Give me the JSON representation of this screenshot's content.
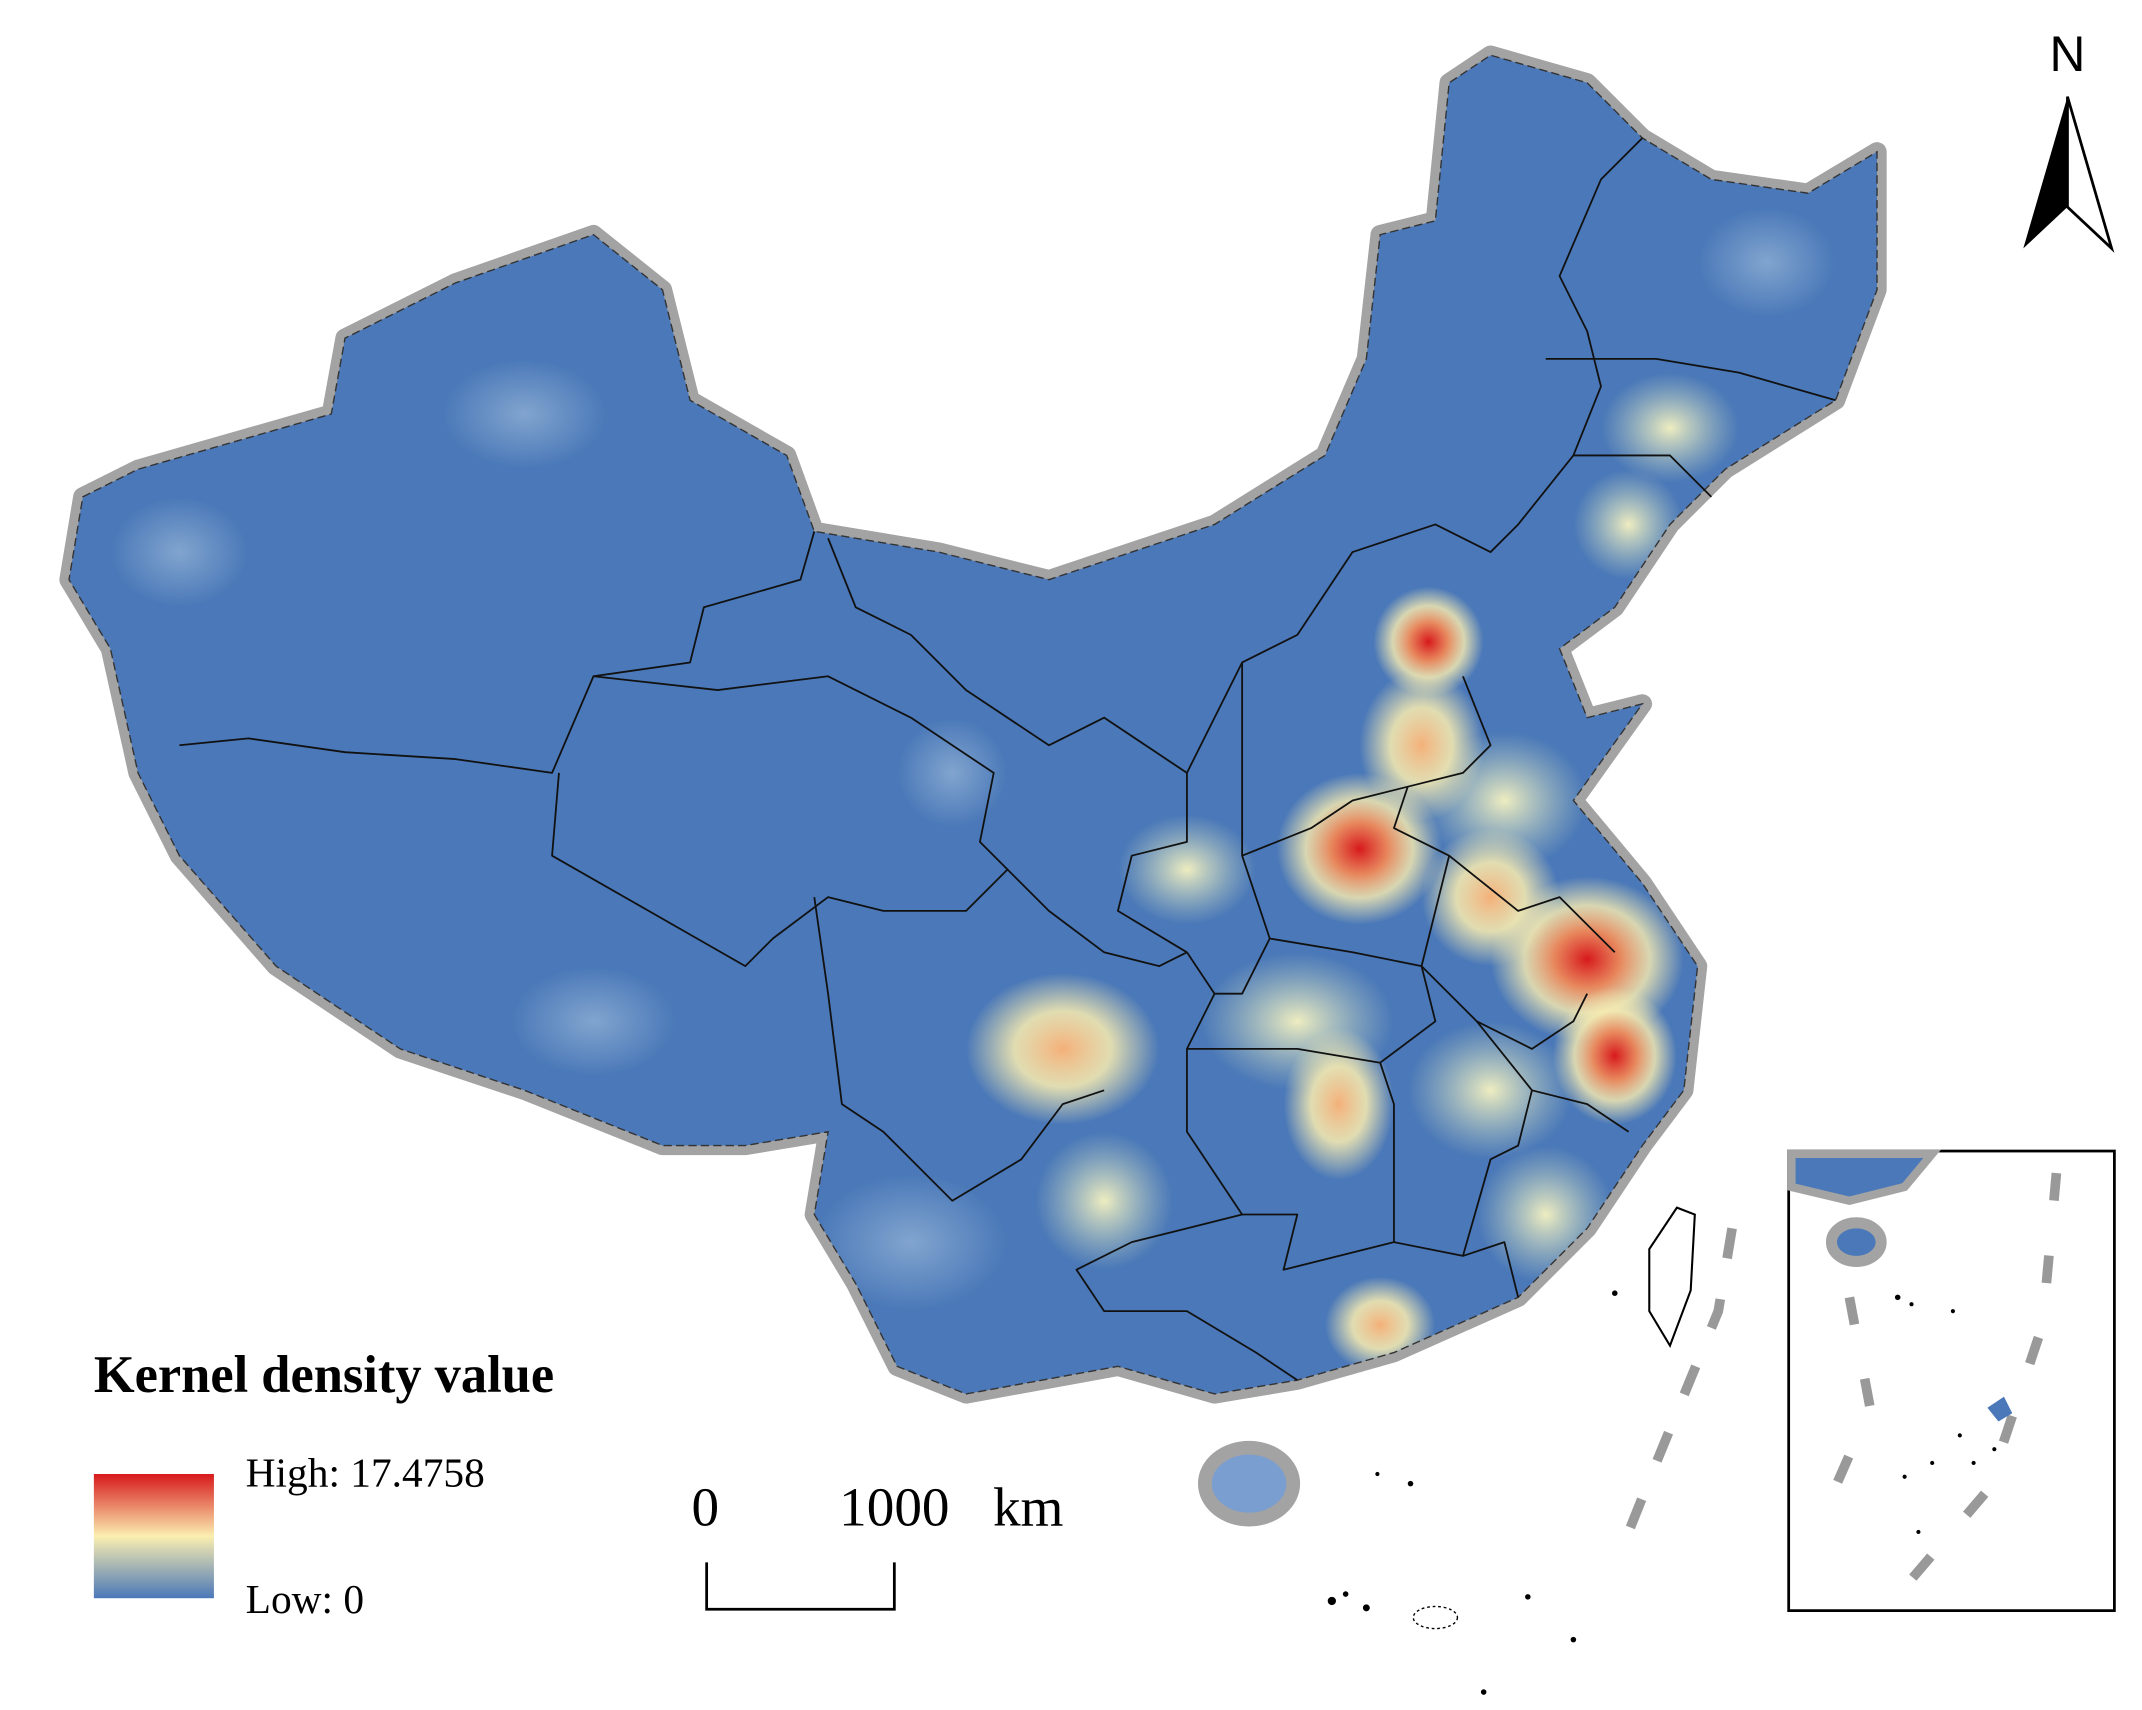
{
  "north_arrow": {
    "label": "N"
  },
  "legend": {
    "title": "Kernel density value",
    "high": "High: 17.4758",
    "low": "Low: 0"
  },
  "scale_bar": {
    "start": "0",
    "end": "1000",
    "unit": "km"
  }
}
